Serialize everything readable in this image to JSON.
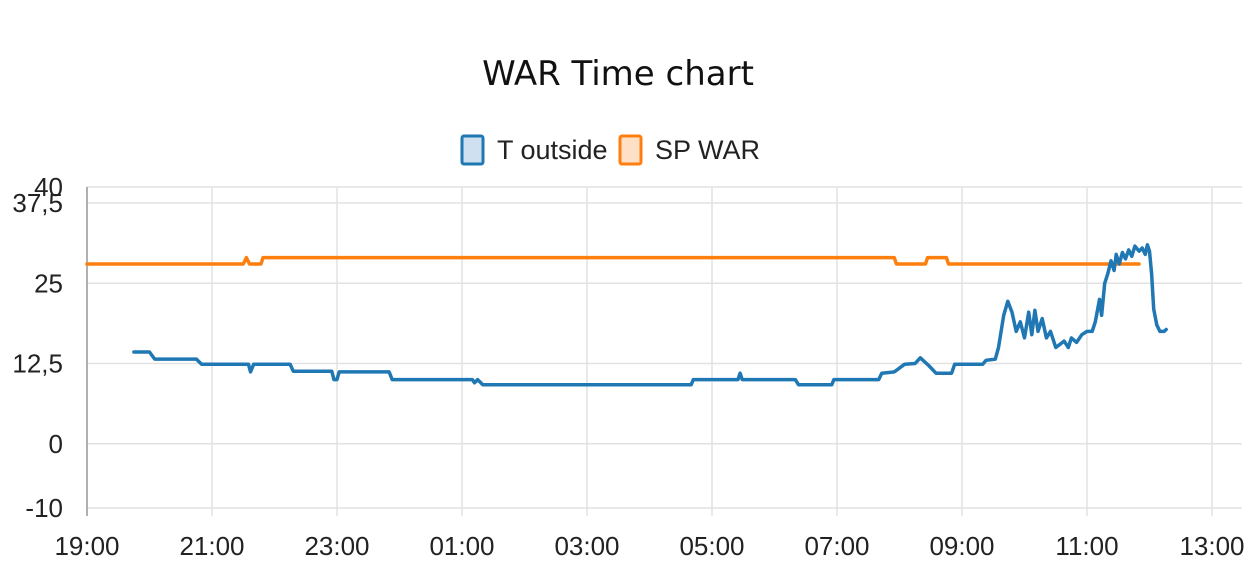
{
  "chart_data": {
    "type": "line",
    "title": "WAR Time chart",
    "xlabel": "",
    "ylabel": "",
    "x_ticks": [
      "19:00",
      "21:00",
      "23:00",
      "01:00",
      "03:00",
      "05:00",
      "07:00",
      "09:00",
      "11:00",
      "13:00"
    ],
    "x_range_hours": [
      19,
      37
    ],
    "y_ticks": [
      "40",
      "37,5",
      "25",
      "12,5",
      "0",
      "-10"
    ],
    "y_tick_values": [
      40,
      37.5,
      25,
      12.5,
      0,
      -10
    ],
    "ylim": [
      -10,
      40
    ],
    "grid": true,
    "legend_position": "top-center",
    "series": [
      {
        "name": "T outside",
        "color": "#1f77b4",
        "fill": "#cfe1f1",
        "points": [
          [
            "19:45",
            14.3
          ],
          [
            "20:00",
            14.3
          ],
          [
            "20:05",
            13.2
          ],
          [
            "20:45",
            13.2
          ],
          [
            "20:50",
            12.4
          ],
          [
            "21:35",
            12.4
          ],
          [
            "21:37",
            11.2
          ],
          [
            "21:40",
            12.4
          ],
          [
            "22:15",
            12.4
          ],
          [
            "22:18",
            11.3
          ],
          [
            "22:55",
            11.3
          ],
          [
            "22:57",
            10.0
          ],
          [
            "23:00",
            10.0
          ],
          [
            "23:02",
            11.2
          ],
          [
            "23:50",
            11.2
          ],
          [
            "23:53",
            10.0
          ],
          [
            "01:10",
            10.0
          ],
          [
            "01:12",
            9.5
          ],
          [
            "01:15",
            10.0
          ],
          [
            "01:20",
            9.2
          ],
          [
            "04:40",
            9.2
          ],
          [
            "04:42",
            10.0
          ],
          [
            "05:25",
            10.0
          ],
          [
            "05:27",
            11.0
          ],
          [
            "05:29",
            10.0
          ],
          [
            "06:20",
            10.0
          ],
          [
            "06:23",
            9.2
          ],
          [
            "06:55",
            9.2
          ],
          [
            "06:57",
            10.0
          ],
          [
            "07:40",
            10.0
          ],
          [
            "07:43",
            11.0
          ],
          [
            "07:55",
            11.2
          ],
          [
            "08:05",
            12.4
          ],
          [
            "08:15",
            12.5
          ],
          [
            "08:20",
            13.4
          ],
          [
            "08:28",
            12.2
          ],
          [
            "08:35",
            11.0
          ],
          [
            "08:50",
            11.0
          ],
          [
            "08:53",
            12.4
          ],
          [
            "09:20",
            12.4
          ],
          [
            "09:23",
            13.0
          ],
          [
            "09:32",
            13.2
          ],
          [
            "09:35",
            15.0
          ],
          [
            "09:40",
            20.0
          ],
          [
            "09:44",
            22.2
          ],
          [
            "09:48",
            20.5
          ],
          [
            "09:52",
            17.5
          ],
          [
            "09:56",
            19.0
          ],
          [
            "10:00",
            16.5
          ],
          [
            "10:04",
            20.5
          ],
          [
            "10:07",
            17.0
          ],
          [
            "10:10",
            20.8
          ],
          [
            "10:13",
            17.5
          ],
          [
            "10:17",
            19.5
          ],
          [
            "10:21",
            16.5
          ],
          [
            "10:25",
            17.5
          ],
          [
            "10:30",
            15.0
          ],
          [
            "10:38",
            16.0
          ],
          [
            "10:42",
            15.0
          ],
          [
            "10:45",
            16.5
          ],
          [
            "10:50",
            15.8
          ],
          [
            "10:55",
            17.0
          ],
          [
            "11:00",
            17.5
          ],
          [
            "11:05",
            17.5
          ],
          [
            "11:08",
            19.0
          ],
          [
            "11:12",
            22.5
          ],
          [
            "11:14",
            20.0
          ],
          [
            "11:17",
            25.0
          ],
          [
            "11:20",
            26.5
          ],
          [
            "11:23",
            28.5
          ],
          [
            "11:26",
            27.0
          ],
          [
            "11:28",
            29.5
          ],
          [
            "11:31",
            28.0
          ],
          [
            "11:34",
            29.8
          ],
          [
            "11:37",
            28.8
          ],
          [
            "11:40",
            30.2
          ],
          [
            "11:43",
            29.2
          ],
          [
            "11:46",
            30.8
          ],
          [
            "11:50",
            30.0
          ],
          [
            "11:53",
            30.5
          ],
          [
            "11:56",
            29.5
          ],
          [
            "11:58",
            31.0
          ],
          [
            "12:00",
            30.0
          ],
          [
            "12:02",
            26.5
          ],
          [
            "12:04",
            21.0
          ],
          [
            "12:07",
            18.5
          ],
          [
            "12:10",
            17.5
          ],
          [
            "12:14",
            17.5
          ],
          [
            "12:16",
            17.8
          ]
        ]
      },
      {
        "name": "SP WAR",
        "color": "#ff7f0e",
        "fill": "#fde0c5",
        "points": [
          [
            "19:00",
            28.0
          ],
          [
            "21:30",
            28.0
          ],
          [
            "21:33",
            29.0
          ],
          [
            "21:36",
            28.0
          ],
          [
            "21:47",
            28.0
          ],
          [
            "21:49",
            29.0
          ],
          [
            "07:55",
            29.0
          ],
          [
            "07:57",
            28.0
          ],
          [
            "08:25",
            28.0
          ],
          [
            "08:27",
            29.0
          ],
          [
            "08:45",
            29.0
          ],
          [
            "08:47",
            28.0
          ],
          [
            "11:50",
            28.0
          ]
        ]
      }
    ]
  }
}
